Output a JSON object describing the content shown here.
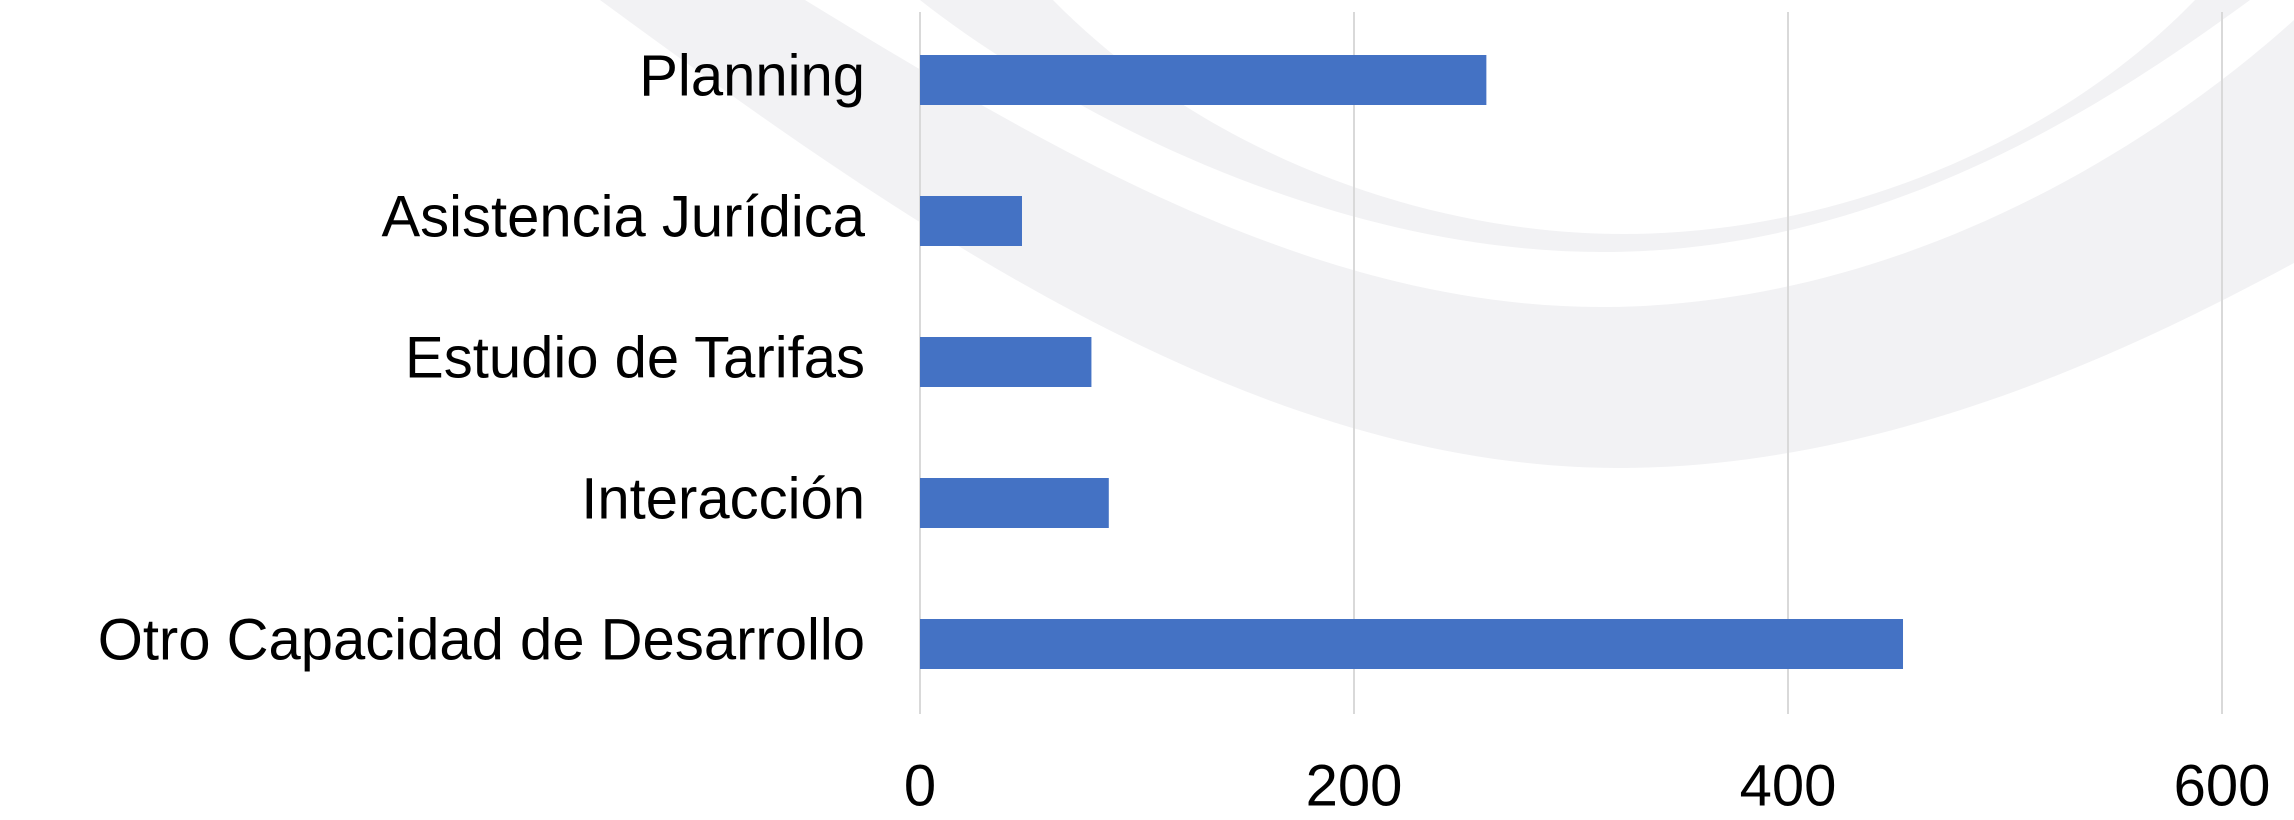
{
  "chart_data": {
    "type": "bar",
    "orientation": "horizontal",
    "categories": [
      "Planning",
      "Asistencia Jurídica",
      "Estudio de Tarifas",
      "Interacción",
      "Otro Capacidad de Desarrollo"
    ],
    "values": [
      261,
      47,
      79,
      87,
      453
    ],
    "color": "#4472c4",
    "xlim": [
      0,
      600
    ],
    "xticks": [
      0,
      200,
      400,
      600
    ],
    "grid": true
  }
}
